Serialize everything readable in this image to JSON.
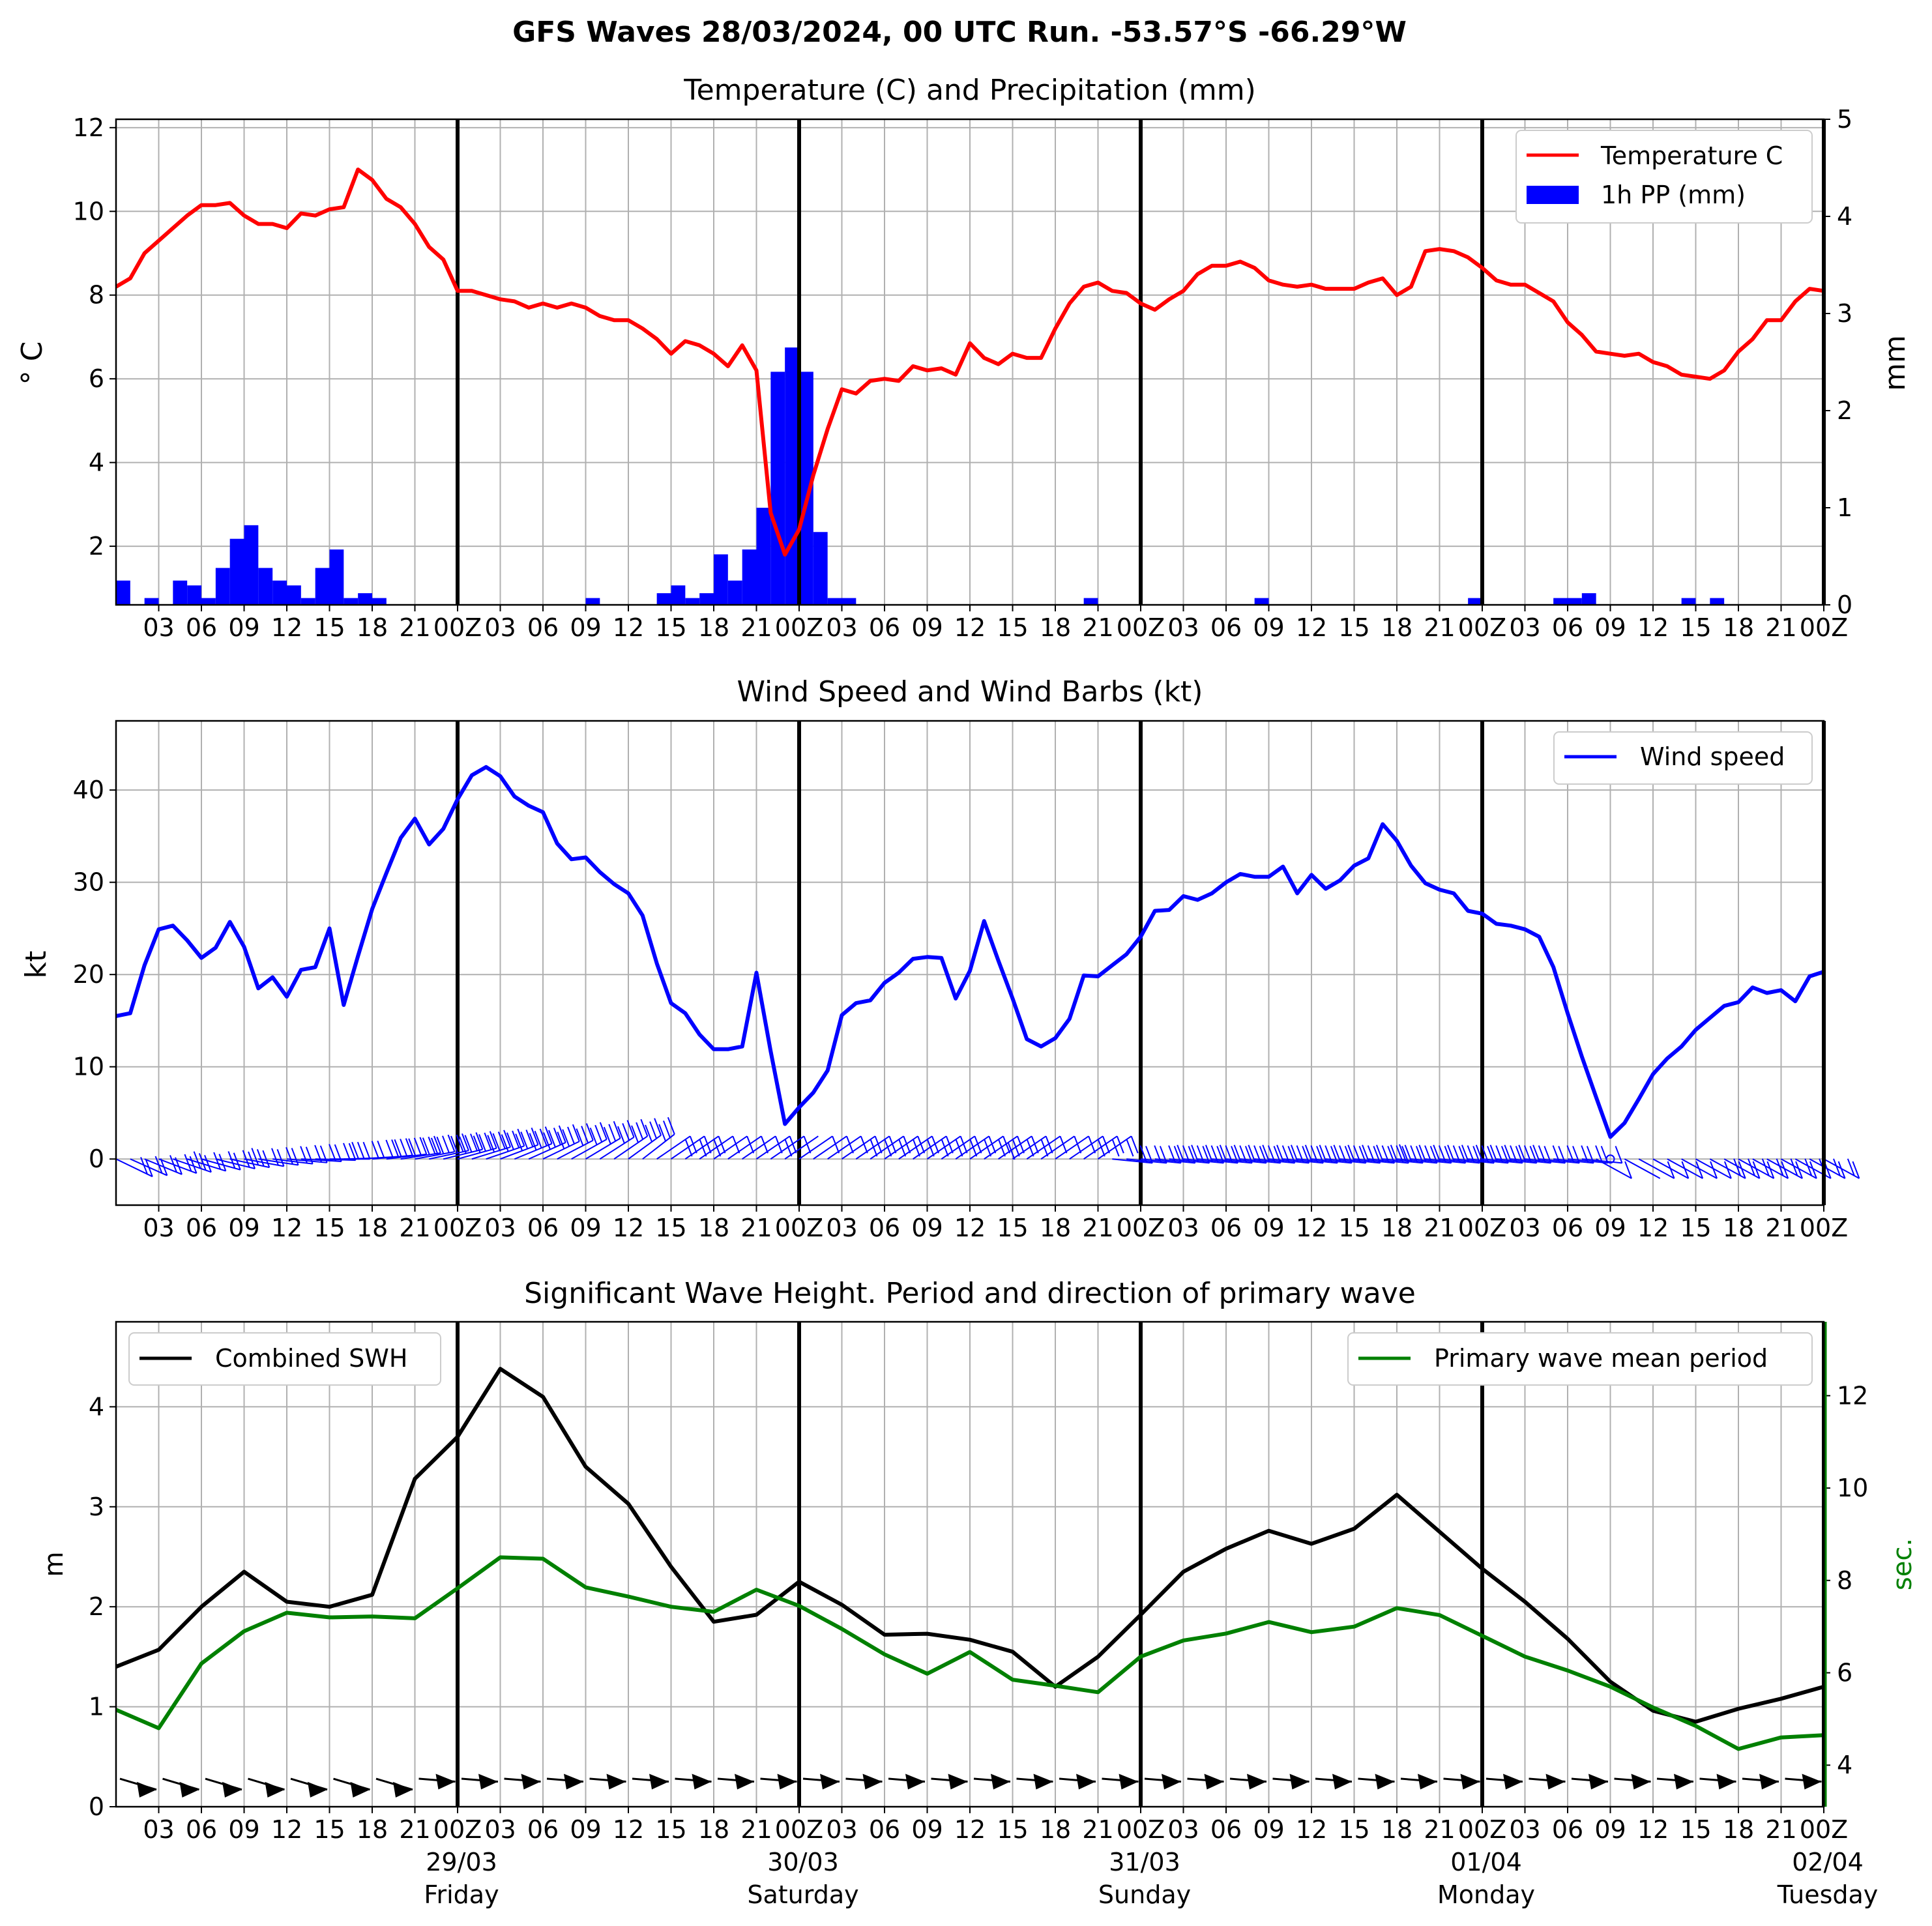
{
  "suptitle": "GFS Waves 28/03/2024, 00 UTC Run. -53.57°S -66.29°W",
  "panels": {
    "temp": {
      "title": "Temperature (C) and Precipitation (mm)",
      "ylabel_left": "° C",
      "ylabel_right": "mm",
      "legend": [
        "Temperature C",
        "1h PP (mm)"
      ],
      "yticks_left": [
        "2",
        "4",
        "6",
        "8",
        "10",
        "12"
      ],
      "yticks_right": [
        "0",
        "1",
        "2",
        "3",
        "4",
        "5"
      ]
    },
    "wind": {
      "title": "Wind Speed and Wind Barbs (kt)",
      "ylabel": "kt",
      "legend": [
        "Wind speed"
      ],
      "yticks": [
        "0",
        "10",
        "20",
        "30",
        "40"
      ]
    },
    "wave": {
      "title": "Significant Wave Height. Period and direction of primary wave",
      "ylabel_left": "m",
      "ylabel_right": "sec.",
      "legend_left": [
        "Combined SWH"
      ],
      "legend_right": [
        "Primary wave mean period"
      ],
      "yticks_left": [
        "0",
        "1",
        "2",
        "3",
        "4"
      ],
      "yticks_right": [
        "4",
        "6",
        "8",
        "10",
        "12"
      ]
    }
  },
  "x_hour_ticks": [
    "03",
    "06",
    "09",
    "12",
    "15",
    "18",
    "21",
    "00Z",
    "03",
    "06",
    "09",
    "12",
    "15",
    "18",
    "21",
    "00Z",
    "03",
    "06",
    "09",
    "12",
    "15",
    "18",
    "21",
    "00Z",
    "03",
    "06",
    "09",
    "12",
    "15",
    "18",
    "21",
    "00Z",
    "03",
    "06",
    "09",
    "12",
    "15",
    "18",
    "21",
    "00Z"
  ],
  "day_labels": [
    {
      "date": "29/03",
      "day": "Friday"
    },
    {
      "date": "30/03",
      "day": "Saturday"
    },
    {
      "date": "31/03",
      "day": "Sunday"
    },
    {
      "date": "01/04",
      "day": "Monday"
    },
    {
      "date": "02/04",
      "day": "Tuesday"
    }
  ],
  "colors": {
    "temperature": "#ff0000",
    "precip": "#0000ff",
    "wind": "#0000ff",
    "swh": "#000000",
    "period": "#008000",
    "grid": "#b0b0b0",
    "day_line": "#000000"
  },
  "chart_data": [
    {
      "type": "line",
      "panel": "temp",
      "title": "Temperature (C) and Precipitation (mm)",
      "x_unit": "hours since 28/03/2024 00 UTC",
      "xlim": [
        0,
        120
      ],
      "ylim_left": [
        0.6,
        12.2
      ],
      "ylim_right": [
        0,
        5
      ],
      "series": [
        {
          "name": "Temperature C",
          "axis": "left",
          "x": [
            0,
            1,
            2,
            3,
            4,
            5,
            6,
            7,
            8,
            9,
            10,
            11,
            12,
            13,
            14,
            15,
            16,
            17,
            18,
            19,
            20,
            21,
            22,
            23,
            24,
            25,
            26,
            27,
            28,
            29,
            30,
            31,
            32,
            33,
            34,
            35,
            36,
            37,
            38,
            39,
            40,
            41,
            42,
            43,
            44,
            45,
            46,
            47,
            48,
            49,
            50,
            51,
            52,
            53,
            54,
            55,
            56,
            57,
            58,
            59,
            60,
            61,
            62,
            63,
            64,
            65,
            66,
            67,
            68,
            69,
            70,
            71,
            72,
            73,
            74,
            75,
            76,
            77,
            78,
            79,
            80,
            81,
            82,
            83,
            84,
            85,
            86,
            87,
            88,
            89,
            90,
            91,
            92,
            93,
            94,
            95,
            96,
            97,
            98,
            99,
            100,
            101,
            102,
            103,
            104,
            105,
            106,
            107,
            108,
            109,
            110,
            111,
            112,
            113,
            114,
            115,
            116,
            117,
            118,
            119,
            120
          ],
          "values": [
            8.2,
            8.4,
            9.0,
            9.3,
            9.6,
            9.9,
            10.15,
            10.15,
            10.2,
            9.9,
            9.7,
            9.7,
            9.6,
            9.95,
            9.9,
            10.05,
            10.1,
            11.0,
            10.75,
            10.3,
            10.1,
            9.7,
            9.15,
            8.85,
            8.1,
            8.1,
            8.0,
            7.9,
            7.85,
            7.7,
            7.8,
            7.7,
            7.8,
            7.7,
            7.5,
            7.4,
            7.4,
            7.2,
            6.95,
            6.6,
            6.9,
            6.8,
            6.6,
            6.3,
            6.8,
            6.2,
            2.8,
            1.8,
            2.4,
            3.7,
            4.8,
            5.75,
            5.65,
            5.95,
            6.0,
            5.95,
            6.3,
            6.2,
            6.25,
            6.1,
            6.85,
            6.5,
            6.35,
            6.6,
            6.5,
            6.5,
            7.2,
            7.8,
            8.2,
            8.3,
            8.1,
            8.05,
            7.8,
            7.65,
            7.9,
            8.1,
            8.5,
            8.7,
            8.7,
            8.8,
            8.65,
            8.35,
            8.25,
            8.2,
            8.25,
            8.15,
            8.15,
            8.15,
            8.3,
            8.4,
            8.0,
            8.2,
            9.05,
            9.1,
            9.05,
            8.9,
            8.65,
            8.35,
            8.25,
            8.25,
            8.05,
            7.85,
            7.35,
            7.05,
            6.65,
            6.6,
            6.55,
            6.6,
            6.4,
            6.3,
            6.1,
            6.05,
            6.0,
            6.2,
            6.65,
            6.95,
            7.4,
            7.4,
            7.85,
            8.15,
            8.1
          ]
        },
        {
          "name": "1h PP (mm)",
          "axis": "right",
          "x": [
            0,
            1,
            2,
            3,
            4,
            5,
            6,
            7,
            8,
            9,
            10,
            11,
            12,
            13,
            14,
            15,
            16,
            17,
            18,
            19,
            20,
            21,
            22,
            23,
            24,
            25,
            26,
            27,
            28,
            29,
            30,
            31,
            32,
            33,
            34,
            35,
            36,
            37,
            38,
            39,
            40,
            41,
            42,
            43,
            44,
            45,
            46,
            47,
            48,
            49,
            50,
            51,
            52,
            53,
            54,
            55,
            56,
            57,
            58,
            59,
            60,
            61,
            62,
            63,
            64,
            65,
            66,
            67,
            68,
            69,
            70,
            71,
            72,
            73,
            74,
            75,
            76,
            77,
            78,
            79,
            80,
            81,
            82,
            83,
            84,
            85,
            86,
            87,
            88,
            89,
            90,
            91,
            92,
            93,
            94,
            95,
            96,
            97,
            98,
            99,
            100,
            101,
            102,
            103,
            104,
            105,
            106,
            107,
            108,
            109,
            110,
            111,
            112,
            113,
            114,
            115,
            116,
            117,
            118,
            119
          ],
          "values": [
            0.25,
            0,
            0.07,
            0,
            0.25,
            0.2,
            0.07,
            0.38,
            0.68,
            0.82,
            0.38,
            0.25,
            0.2,
            0.07,
            0.38,
            0.57,
            0.07,
            0.12,
            0.07,
            0,
            0,
            0,
            0,
            0,
            0,
            0,
            0,
            0,
            0,
            0,
            0,
            0,
            0,
            0.07,
            0,
            0,
            0,
            0,
            0.12,
            0.2,
            0.07,
            0.12,
            0.52,
            0.25,
            0.57,
            1.0,
            2.4,
            2.65,
            2.4,
            0.75,
            0.07,
            0.07,
            0,
            0,
            0,
            0,
            0,
            0,
            0,
            0,
            0,
            0,
            0,
            0,
            0,
            0,
            0,
            0,
            0.07,
            0,
            0,
            0,
            0,
            0,
            0,
            0,
            0,
            0,
            0,
            0,
            0.07,
            0,
            0,
            0,
            0,
            0,
            0,
            0,
            0,
            0,
            0,
            0,
            0,
            0,
            0,
            0.07,
            0,
            0,
            0,
            0,
            0,
            0.07,
            0.07,
            0.12,
            0,
            0,
            0,
            0,
            0,
            0,
            0.07,
            0,
            0.07,
            0,
            0,
            0,
            0,
            0,
            0,
            0
          ]
        }
      ]
    },
    {
      "type": "line",
      "panel": "wind",
      "title": "Wind Speed and Wind Barbs (kt)",
      "x_unit": "hours since 28/03/2024 00 UTC",
      "xlim": [
        0,
        120
      ],
      "ylim": [
        -5,
        47.5
      ],
      "series": [
        {
          "name": "Wind speed",
          "x": [
            0,
            1,
            2,
            3,
            4,
            5,
            6,
            7,
            8,
            9,
            10,
            11,
            12,
            13,
            14,
            15,
            16,
            17,
            18,
            19,
            20,
            21,
            22,
            23,
            24,
            25,
            26,
            27,
            28,
            29,
            30,
            31,
            32,
            33,
            34,
            35,
            36,
            37,
            38,
            39,
            40,
            41,
            42,
            43,
            44,
            45,
            46,
            47,
            48,
            49,
            50,
            51,
            52,
            53,
            54,
            55,
            56,
            57,
            58,
            59,
            60,
            61,
            62,
            63,
            64,
            65,
            66,
            67,
            68,
            69,
            70,
            71,
            72,
            73,
            74,
            75,
            76,
            77,
            78,
            79,
            80,
            81,
            82,
            83,
            84,
            85,
            86,
            87,
            88,
            89,
            90,
            91,
            92,
            93,
            94,
            95,
            96,
            97,
            98,
            99,
            100,
            101,
            102,
            103,
            104,
            105,
            106,
            107,
            108,
            109,
            110,
            111,
            112,
            113,
            114,
            115,
            116,
            117,
            118,
            119,
            120
          ],
          "values": [
            15.5,
            15.8,
            21.0,
            24.9,
            25.3,
            23.7,
            21.8,
            22.9,
            25.7,
            23.0,
            18.5,
            19.7,
            17.6,
            20.5,
            20.8,
            25.0,
            16.7,
            22.0,
            27.1,
            31.0,
            34.8,
            36.9,
            34.1,
            35.8,
            39.0,
            41.6,
            42.5,
            41.5,
            39.3,
            38.3,
            37.6,
            34.2,
            32.5,
            32.7,
            31.1,
            29.8,
            28.8,
            26.4,
            21.2,
            16.9,
            15.8,
            13.5,
            11.9,
            11.9,
            12.2,
            20.2,
            11.7,
            3.8,
            5.6,
            7.2,
            9.6,
            15.6,
            16.9,
            17.2,
            19.1,
            20.2,
            21.7,
            21.9,
            21.8,
            17.4,
            20.4,
            25.8,
            21.5,
            17.4,
            13.0,
            12.2,
            13.1,
            15.2,
            19.9,
            19.8,
            21.0,
            22.2,
            24.1,
            26.9,
            27.0,
            28.5,
            28.1,
            28.8,
            30.0,
            30.9,
            30.6,
            30.6,
            31.7,
            28.8,
            30.8,
            29.3,
            30.2,
            31.8,
            32.6,
            36.3,
            34.5,
            31.8,
            29.9,
            29.2,
            28.8,
            26.9,
            26.6,
            25.5,
            25.3,
            24.9,
            24.1,
            20.8,
            15.8,
            11.1,
            6.7,
            2.4,
            3.9,
            6.5,
            9.2,
            10.9,
            12.2,
            14.0,
            15.3,
            16.6,
            17.0,
            18.6,
            18.0,
            18.3,
            17.1,
            19.8,
            20.3
          ]
        }
      ]
    },
    {
      "type": "line",
      "panel": "wave",
      "title": "Significant Wave Height. Period and direction of primary wave",
      "x_unit": "hours since 28/03/2024 00 UTC",
      "xlim": [
        0,
        120
      ],
      "ylim_left": [
        0,
        4.85
      ],
      "ylim_right": [
        3.1,
        13.6
      ],
      "series": [
        {
          "name": "Combined SWH",
          "axis": "left",
          "x": [
            0,
            3,
            6,
            9,
            12,
            15,
            18,
            21,
            24,
            27,
            30,
            33,
            36,
            39,
            42,
            45,
            48,
            51,
            54,
            57,
            60,
            63,
            66,
            69,
            72,
            75,
            78,
            81,
            84,
            87,
            90,
            93,
            96,
            99,
            102,
            105,
            108,
            111,
            114,
            117,
            120
          ],
          "values": [
            1.4,
            1.57,
            2.0,
            2.35,
            2.05,
            2.0,
            2.12,
            3.28,
            3.7,
            4.38,
            4.1,
            3.4,
            3.03,
            2.4,
            1.85,
            1.92,
            2.25,
            2.02,
            1.72,
            1.73,
            1.67,
            1.55,
            1.2,
            1.5,
            1.92,
            2.35,
            2.58,
            2.76,
            2.63,
            2.78,
            3.12,
            2.75,
            2.38,
            2.05,
            1.68,
            1.25,
            0.96,
            0.85,
            0.98,
            1.08,
            1.2
          ]
        },
        {
          "name": "Primary wave mean period",
          "axis": "right",
          "x": [
            0,
            3,
            6,
            9,
            12,
            15,
            18,
            21,
            24,
            27,
            30,
            33,
            36,
            39,
            42,
            45,
            48,
            51,
            54,
            57,
            60,
            63,
            66,
            69,
            72,
            75,
            78,
            81,
            84,
            87,
            90,
            93,
            96,
            99,
            102,
            105,
            108,
            111,
            114,
            117,
            120
          ],
          "values": [
            5.2,
            4.8,
            6.2,
            6.9,
            7.3,
            7.2,
            7.22,
            7.18,
            7.83,
            8.5,
            8.47,
            7.85,
            7.65,
            7.43,
            7.32,
            7.8,
            7.45,
            6.95,
            6.4,
            5.98,
            6.45,
            5.85,
            5.72,
            5.58,
            6.35,
            6.7,
            6.85,
            7.1,
            6.88,
            7.0,
            7.4,
            7.25,
            6.8,
            6.35,
            6.05,
            5.7,
            5.25,
            4.85,
            4.35,
            4.6,
            4.65
          ]
        }
      ]
    }
  ]
}
